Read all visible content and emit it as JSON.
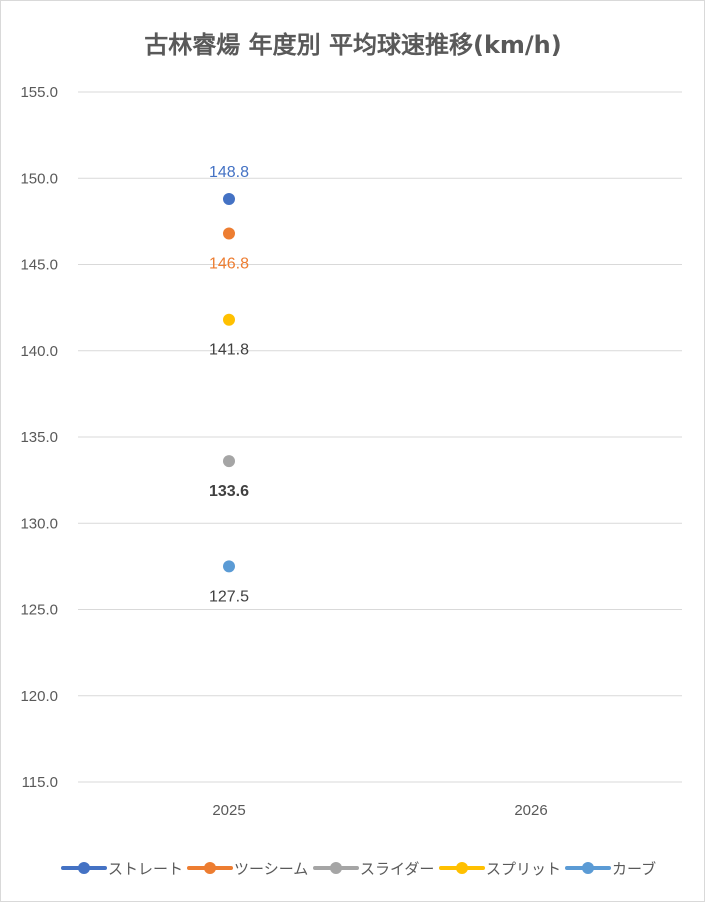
{
  "chart_data": {
    "type": "scatter",
    "title": "古林睿煬 年度別 平均球速推移(km/h)",
    "categories": [
      "2025",
      "2026"
    ],
    "ylim": [
      115,
      155
    ],
    "yticks": [
      "155.0",
      "150.0",
      "145.0",
      "140.0",
      "135.0",
      "130.0",
      "125.0",
      "120.0",
      "115.0"
    ],
    "grid": true,
    "legend_position": "bottom",
    "series": [
      {
        "name": "ストレート",
        "color": "#4472C4",
        "values": [
          148.8,
          null
        ],
        "labels": [
          "148.8",
          ""
        ],
        "label_position": "above",
        "label_color": "#4472C4",
        "label_bold": false
      },
      {
        "name": "ツーシーム",
        "color": "#ED7D31",
        "values": [
          146.8,
          null
        ],
        "labels": [
          "146.8",
          ""
        ],
        "label_position": "below",
        "label_color": "#ED7D31",
        "label_bold": false
      },
      {
        "name": "スライダー",
        "color": "#A5A5A5",
        "values": [
          133.6,
          null
        ],
        "labels": [
          "133.6",
          ""
        ],
        "label_position": "below",
        "label_color": "#404040",
        "label_bold": true
      },
      {
        "name": "スプリット",
        "color": "#FFC000",
        "values": [
          141.8,
          null
        ],
        "labels": [
          "141.8",
          ""
        ],
        "label_position": "below",
        "label_color": "#404040",
        "label_bold": false
      },
      {
        "name": "カーブ",
        "color": "#5B9BD5",
        "values": [
          127.5,
          null
        ],
        "labels": [
          "127.5",
          ""
        ],
        "label_position": "below",
        "label_color": "#404040",
        "label_bold": false
      }
    ]
  }
}
